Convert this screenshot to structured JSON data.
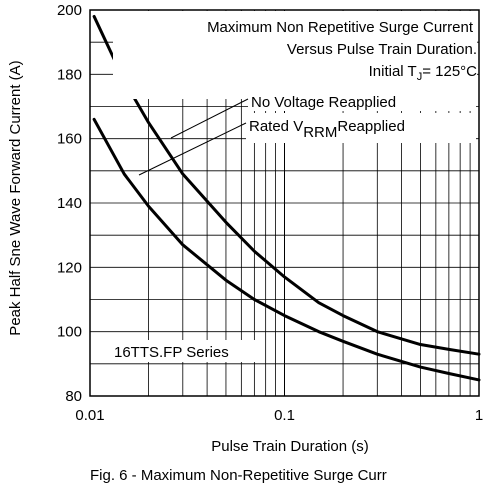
{
  "chart_data": {
    "type": "line",
    "x_scale": "log",
    "xlim": [
      0.01,
      1
    ],
    "ylim": [
      80,
      200
    ],
    "xlabel": "Pulse Train Duration (s)",
    "ylabel": "Peak Half Sne Wave Forward Current (A)",
    "x_ticks": [
      {
        "value": 0.01,
        "label": "0.01"
      },
      {
        "value": 0.1,
        "label": "0.1"
      },
      {
        "value": 1,
        "label": "1"
      }
    ],
    "y_ticks": [
      80,
      100,
      120,
      140,
      160,
      180,
      200
    ],
    "grid": true,
    "series": [
      {
        "name": "No Voltage Reapplied",
        "x": [
          0.0105,
          0.015,
          0.02,
          0.03,
          0.05,
          0.07,
          0.1,
          0.15,
          0.2,
          0.3,
          0.5,
          0.7,
          1.0
        ],
        "y": [
          198,
          178,
          165,
          149,
          134,
          125,
          117,
          109,
          105,
          100,
          96,
          94.5,
          93
        ]
      },
      {
        "name": "Rated VRRM Reapplied",
        "x": [
          0.0105,
          0.015,
          0.02,
          0.03,
          0.05,
          0.07,
          0.1,
          0.15,
          0.2,
          0.3,
          0.5,
          0.7,
          1.0
        ],
        "y": [
          166,
          149,
          139,
          127,
          116,
          110,
          105,
          100,
          97,
          93,
          89,
          87,
          85
        ]
      }
    ],
    "annotations": {
      "line1": "Maximum Non Repetitive Surge Current",
      "line2": "Versus Pulse Train Duration.",
      "line3_prefix": "Initial T",
      "line3_sub": "J",
      "line3_suffix": "= 125°C",
      "curve1_label": "No Voltage Reapplied",
      "curve2_prefix": "Rated V",
      "curve2_sub": "RRM",
      "curve2_suffix": "Reapplied",
      "series_label": "16TTS.FP Series"
    },
    "caption": "Fig. 6 - Maximum Non-Repetitive Surge Curr"
  }
}
